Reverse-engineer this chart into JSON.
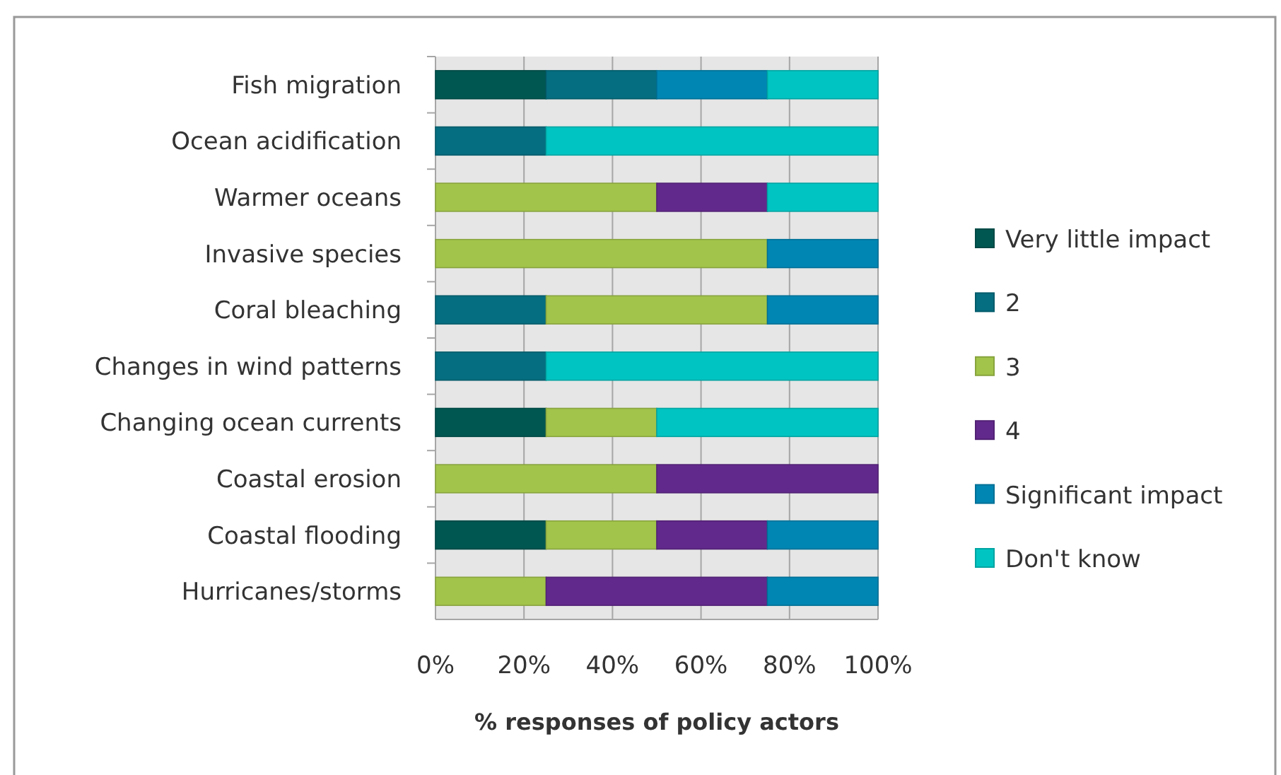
{
  "chart_data": {
    "type": "bar",
    "orientation": "horizontal",
    "stacked": true,
    "categories": [
      "Fish migration",
      "Ocean acidification",
      "Warmer oceans",
      "Invasive species",
      "Coral bleaching",
      "Changes in wind patterns",
      "Changing ocean currents",
      "Coastal erosion",
      "Coastal flooding",
      "Hurricanes/storms"
    ],
    "series": [
      {
        "name": "Very little impact",
        "color": "#005752",
        "values": [
          25,
          0,
          0,
          0,
          0,
          0,
          25,
          0,
          25,
          0
        ]
      },
      {
        "name": "2",
        "color": "#056e80",
        "values": [
          25,
          25,
          0,
          0,
          25,
          25,
          0,
          0,
          0,
          0
        ]
      },
      {
        "name": "3",
        "color": "#a2c44a",
        "values": [
          0,
          0,
          50,
          75,
          50,
          0,
          25,
          50,
          25,
          25
        ]
      },
      {
        "name": "4",
        "color": "#62298c",
        "values": [
          0,
          0,
          25,
          0,
          0,
          0,
          0,
          50,
          25,
          50
        ]
      },
      {
        "name": "Significant impact",
        "color": "#0086b3",
        "values": [
          25,
          0,
          0,
          25,
          25,
          0,
          0,
          0,
          25,
          25
        ]
      },
      {
        "name": "Don't know",
        "color": "#00c4c2",
        "values": [
          25,
          75,
          25,
          0,
          0,
          75,
          50,
          0,
          0,
          0
        ]
      }
    ],
    "xlim": [
      0,
      100
    ],
    "xticks": [
      {
        "value": 0,
        "label": "0%"
      },
      {
        "value": 20,
        "label": "20%"
      },
      {
        "value": 40,
        "label": "40%"
      },
      {
        "value": 60,
        "label": "60%"
      },
      {
        "value": 80,
        "label": "80%"
      },
      {
        "value": 100,
        "label": "100%"
      }
    ],
    "xlabel": "% responses of policy actors",
    "grid": "x",
    "legend": "right"
  }
}
